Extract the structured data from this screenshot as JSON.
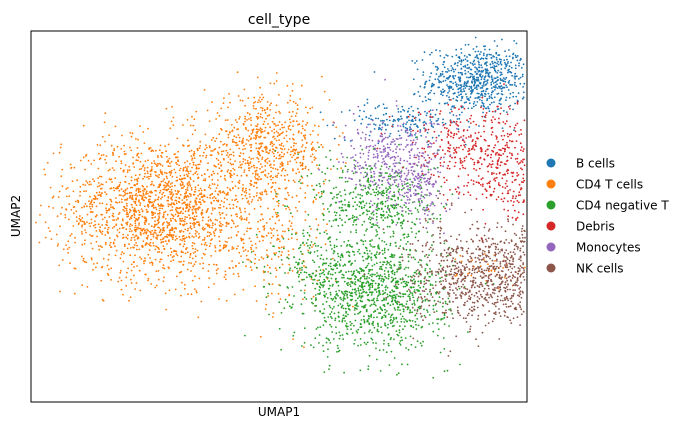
{
  "chart_data": {
    "type": "scatter",
    "title": "cell_type",
    "xlabel": "UMAP1",
    "ylabel": "UMAP2",
    "xlim": [
      -2.2,
      12.2
    ],
    "ylim": [
      -2.2,
      12.2
    ],
    "grid": false,
    "ticks": false,
    "legend_position": "right",
    "series": [
      {
        "name": "B cells",
        "color": "#1f77b4",
        "clusters": [
          {
            "cx": 10.8,
            "cy": 10.3,
            "sx": 0.75,
            "sy": 0.65,
            "n": 700
          },
          {
            "cx": 8.5,
            "cy": 8.7,
            "sx": 0.9,
            "sy": 0.35,
            "n": 160
          }
        ]
      },
      {
        "name": "CD4 T cells",
        "color": "#ff7f0e",
        "clusters": [
          {
            "cx": 1.6,
            "cy": 5.3,
            "sx": 1.45,
            "sy": 1.35,
            "n": 1800
          },
          {
            "cx": 4.6,
            "cy": 7.6,
            "sx": 0.9,
            "sy": 1.0,
            "n": 650
          },
          {
            "cx": 4.8,
            "cy": 3.8,
            "sx": 0.9,
            "sy": 1.1,
            "n": 180
          },
          {
            "cx": 11.2,
            "cy": 3.0,
            "sx": 0.5,
            "sy": 0.35,
            "n": 40
          }
        ]
      },
      {
        "name": "CD4 negative T",
        "color": "#2ca02c",
        "clusters": [
          {
            "cx": 7.8,
            "cy": 2.0,
            "sx": 1.05,
            "sy": 1.1,
            "n": 1100
          },
          {
            "cx": 7.8,
            "cy": 5.6,
            "sx": 0.9,
            "sy": 0.9,
            "n": 450
          },
          {
            "cx": 5.9,
            "cy": 3.2,
            "sx": 0.7,
            "sy": 0.8,
            "n": 150
          }
        ]
      },
      {
        "name": "Debris",
        "color": "#d62728",
        "clusters": [
          {
            "cx": 11.4,
            "cy": 7.2,
            "sx": 0.7,
            "sy": 1.0,
            "n": 260
          },
          {
            "cx": 10.2,
            "cy": 7.8,
            "sx": 0.8,
            "sy": 0.9,
            "n": 220
          },
          {
            "cx": 12.2,
            "cy": 6.0,
            "sx": 0.5,
            "sy": 0.6,
            "n": 80
          }
        ]
      },
      {
        "name": "Monocytes",
        "color": "#9467bd",
        "clusters": [
          {
            "cx": 8.4,
            "cy": 7.1,
            "sx": 0.75,
            "sy": 0.85,
            "n": 400
          },
          {
            "cx": 9.1,
            "cy": 5.8,
            "sx": 0.35,
            "sy": 0.6,
            "n": 90
          }
        ]
      },
      {
        "name": "NK cells",
        "color": "#8c564b",
        "clusters": [
          {
            "cx": 10.9,
            "cy": 2.7,
            "sx": 1.05,
            "sy": 0.95,
            "n": 850
          },
          {
            "cx": 12.2,
            "cy": 3.2,
            "sx": 0.45,
            "sy": 0.8,
            "n": 120
          }
        ]
      }
    ]
  }
}
